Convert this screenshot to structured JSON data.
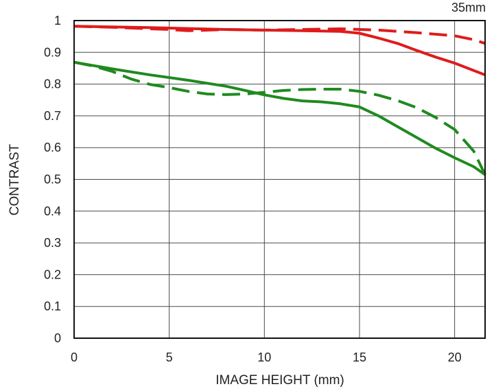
{
  "chart_data": {
    "type": "line",
    "title": "",
    "corner_label": "35mm",
    "xlabel": "IMAGE HEIGHT (mm)",
    "ylabel": "CONTRAST",
    "xlim": [
      0,
      21.6
    ],
    "ylim": [
      0,
      1
    ],
    "xticks": [
      0,
      5,
      10,
      15,
      20
    ],
    "yticks": [
      0,
      0.1,
      0.2,
      0.3,
      0.4,
      0.5,
      0.6,
      0.7,
      0.8,
      0.9,
      1
    ],
    "xtick_labels": [
      "0",
      "5",
      "10",
      "15",
      "20"
    ],
    "ytick_labels": [
      "0",
      "0.1",
      "0.2",
      "0.3",
      "0.4",
      "0.5",
      "0.6",
      "0.7",
      "0.8",
      "0.9",
      "1"
    ],
    "grid": true,
    "series": [
      {
        "color": "#e01b1b",
        "dash": "solid",
        "x": [
          0,
          2,
          4,
          6,
          8,
          10,
          12,
          14,
          15,
          16,
          17,
          18,
          19,
          20,
          21,
          21.6
        ],
        "y": [
          0.982,
          0.98,
          0.978,
          0.975,
          0.972,
          0.97,
          0.968,
          0.966,
          0.96,
          0.945,
          0.928,
          0.906,
          0.885,
          0.866,
          0.843,
          0.829
        ]
      },
      {
        "color": "#e01b1b",
        "dash": "dashed",
        "x": [
          0,
          2,
          4,
          5,
          6,
          8,
          10,
          12,
          14,
          16,
          18,
          20,
          21,
          21.6
        ],
        "y": [
          0.982,
          0.979,
          0.974,
          0.972,
          0.968,
          0.972,
          0.97,
          0.972,
          0.974,
          0.97,
          0.962,
          0.952,
          0.94,
          0.928
        ]
      },
      {
        "color": "#1f8a1f",
        "dash": "solid",
        "x": [
          0,
          2,
          4,
          6,
          8,
          9,
          10,
          11,
          12,
          13,
          14,
          15,
          16,
          17,
          18,
          19,
          20,
          21,
          21.6
        ],
        "y": [
          0.869,
          0.848,
          0.829,
          0.812,
          0.793,
          0.78,
          0.766,
          0.755,
          0.747,
          0.744,
          0.738,
          0.728,
          0.7,
          0.666,
          0.632,
          0.598,
          0.568,
          0.54,
          0.515
        ]
      },
      {
        "color": "#1f8a1f",
        "dash": "dashed",
        "x": [
          0,
          1,
          2,
          3,
          4,
          5,
          6,
          7,
          8,
          9,
          10,
          11,
          12,
          13,
          14,
          15,
          16,
          17,
          18,
          19,
          20,
          21,
          21.6
        ],
        "y": [
          0.869,
          0.857,
          0.84,
          0.816,
          0.799,
          0.789,
          0.777,
          0.769,
          0.767,
          0.769,
          0.774,
          0.78,
          0.783,
          0.784,
          0.784,
          0.777,
          0.765,
          0.748,
          0.726,
          0.695,
          0.657,
          0.589,
          0.515
        ]
      }
    ]
  }
}
